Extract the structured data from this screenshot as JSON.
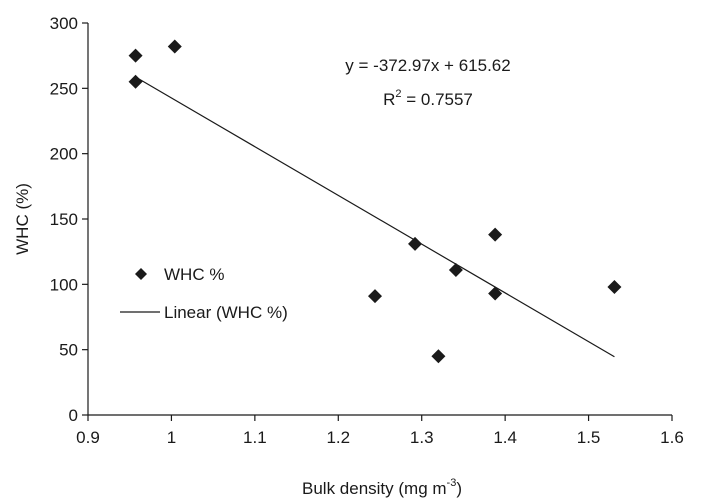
{
  "chart_data": {
    "type": "scatter",
    "xlabel": "Bulk density (mg m",
    "xlabel_sup": "-3",
    "xlabel_end": ")",
    "ylabel": "WHC (%)",
    "xlim": [
      0.9,
      1.6
    ],
    "ylim": [
      0,
      300
    ],
    "xticks": [
      0.9,
      1,
      1.1,
      1.2,
      1.3,
      1.4,
      1.5,
      1.6
    ],
    "yticks": [
      0,
      50,
      100,
      150,
      200,
      250,
      300
    ],
    "xtick_labels": [
      "0.9",
      "1",
      "1.1",
      "1.2",
      "1.3",
      "1.4",
      "1.5",
      "1.6"
    ],
    "ytick_labels": [
      "0",
      "50",
      "100",
      "150",
      "200",
      "250",
      "300"
    ],
    "series": [
      {
        "name": "WHC %",
        "marker": "diamond",
        "x": [
          0.957,
          0.957,
          1.004,
          1.244,
          1.292,
          1.32,
          1.341,
          1.388,
          1.388,
          1.531
        ],
        "y": [
          275,
          255,
          282,
          91,
          131,
          45,
          111,
          138,
          93,
          98
        ]
      }
    ],
    "trendline": {
      "name": "Linear (WHC %)",
      "slope": -372.97,
      "intercept": 615.62,
      "x_range": [
        0.957,
        1.531
      ]
    },
    "equation_text": "y = -372.97x + 615.62",
    "r2_prefix": "R",
    "r2_sup": "2",
    "r2_suffix": " = 0.7557",
    "grid": false,
    "legend_position": "left-middle"
  }
}
